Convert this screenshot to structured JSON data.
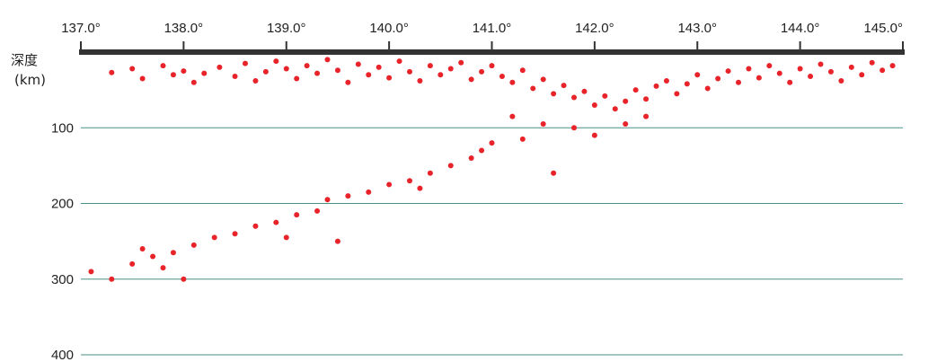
{
  "chart_data": {
    "type": "scatter",
    "title": "",
    "xlabel": "",
    "ylabel": "深度",
    "ylabel_unit": "(km)",
    "x_axis_position": "top",
    "xlim": [
      137.0,
      145.0
    ],
    "ylim": [
      0,
      400
    ],
    "y_inverted": true,
    "x_ticks": [
      "137.0°",
      "138.0°",
      "139.0°",
      "140.0°",
      "141.0°",
      "142.0°",
      "143.0°",
      "144.0°",
      "145.0°"
    ],
    "y_ticks": [
      "100",
      "200",
      "300",
      "400"
    ],
    "y_tick_values": [
      100,
      200,
      300,
      400
    ],
    "grid": "horizontal",
    "colors": {
      "points": "#e8232a",
      "grid": "#4a8f86",
      "axis": "#333333"
    },
    "series": [
      {
        "points": [
          [
            137.3,
            27
          ],
          [
            137.5,
            22
          ],
          [
            137.6,
            35
          ],
          [
            137.8,
            18
          ],
          [
            137.9,
            30
          ],
          [
            138.0,
            25
          ],
          [
            138.1,
            40
          ],
          [
            138.2,
            28
          ],
          [
            138.35,
            20
          ],
          [
            138.5,
            32
          ],
          [
            138.6,
            15
          ],
          [
            138.7,
            38
          ],
          [
            138.8,
            26
          ],
          [
            138.9,
            12
          ],
          [
            139.0,
            22
          ],
          [
            139.1,
            35
          ],
          [
            139.2,
            18
          ],
          [
            139.3,
            28
          ],
          [
            139.4,
            10
          ],
          [
            139.5,
            24
          ],
          [
            139.6,
            40
          ],
          [
            139.7,
            16
          ],
          [
            139.8,
            30
          ],
          [
            139.9,
            20
          ],
          [
            140.0,
            34
          ],
          [
            140.1,
            12
          ],
          [
            140.2,
            26
          ],
          [
            140.3,
            38
          ],
          [
            140.4,
            18
          ],
          [
            140.5,
            30
          ],
          [
            140.6,
            22
          ],
          [
            140.7,
            14
          ],
          [
            140.8,
            36
          ],
          [
            140.9,
            26
          ],
          [
            141.0,
            18
          ],
          [
            141.1,
            32
          ],
          [
            141.2,
            40
          ],
          [
            141.3,
            24
          ],
          [
            141.4,
            48
          ],
          [
            141.5,
            36
          ],
          [
            141.6,
            55
          ],
          [
            141.7,
            44
          ],
          [
            141.8,
            60
          ],
          [
            141.9,
            52
          ],
          [
            142.0,
            70
          ],
          [
            142.1,
            58
          ],
          [
            142.2,
            75
          ],
          [
            142.3,
            65
          ],
          [
            142.4,
            50
          ],
          [
            142.5,
            62
          ],
          [
            142.6,
            45
          ],
          [
            142.7,
            38
          ],
          [
            142.8,
            55
          ],
          [
            142.9,
            42
          ],
          [
            143.0,
            30
          ],
          [
            143.1,
            48
          ],
          [
            143.2,
            35
          ],
          [
            143.3,
            25
          ],
          [
            143.4,
            40
          ],
          [
            143.5,
            22
          ],
          [
            143.6,
            34
          ],
          [
            143.7,
            18
          ],
          [
            143.8,
            28
          ],
          [
            143.9,
            40
          ],
          [
            144.0,
            22
          ],
          [
            144.1,
            32
          ],
          [
            144.2,
            16
          ],
          [
            144.3,
            26
          ],
          [
            144.4,
            38
          ],
          [
            144.5,
            20
          ],
          [
            144.6,
            30
          ],
          [
            144.7,
            14
          ],
          [
            144.8,
            24
          ],
          [
            144.9,
            18
          ],
          [
            141.2,
            85
          ],
          [
            141.5,
            95
          ],
          [
            141.8,
            100
          ],
          [
            142.0,
            110
          ],
          [
            142.3,
            95
          ],
          [
            142.5,
            85
          ],
          [
            141.0,
            120
          ],
          [
            140.8,
            140
          ],
          [
            140.6,
            150
          ],
          [
            140.4,
            160
          ],
          [
            140.2,
            170
          ],
          [
            140.0,
            175
          ],
          [
            140.3,
            180
          ],
          [
            139.8,
            185
          ],
          [
            139.6,
            190
          ],
          [
            139.4,
            195
          ],
          [
            139.3,
            210
          ],
          [
            139.1,
            215
          ],
          [
            138.9,
            225
          ],
          [
            138.7,
            230
          ],
          [
            138.5,
            240
          ],
          [
            138.3,
            245
          ],
          [
            138.1,
            255
          ],
          [
            137.9,
            265
          ],
          [
            137.7,
            270
          ],
          [
            137.5,
            280
          ],
          [
            137.3,
            300
          ],
          [
            137.1,
            290
          ],
          [
            137.6,
            260
          ],
          [
            137.8,
            285
          ],
          [
            138.0,
            300
          ],
          [
            139.0,
            245
          ],
          [
            139.5,
            250
          ],
          [
            141.6,
            160
          ],
          [
            140.9,
            130
          ],
          [
            141.3,
            115
          ]
        ]
      }
    ]
  }
}
